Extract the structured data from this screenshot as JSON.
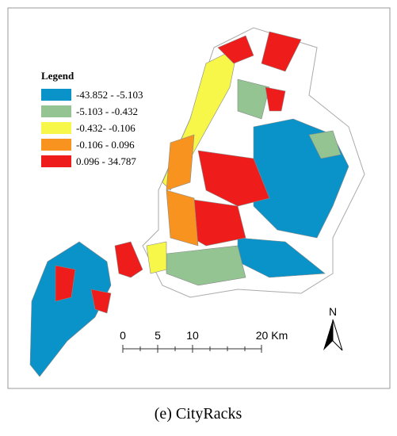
{
  "legend": {
    "title": "Legend",
    "items": [
      {
        "label": "-43.852 - -5.103",
        "color": "#0a93c8"
      },
      {
        "label": "-5.103 - -0.432",
        "color": "#93c492"
      },
      {
        "label": "-0.432- -0.106",
        "color": "#f7f74a"
      },
      {
        "label": "-0.106 - 0.096",
        "color": "#f7931e"
      },
      {
        "label": "0.096 - 34.787",
        "color": "#ef1c1c"
      }
    ]
  },
  "scale_bar": {
    "labels": [
      "0",
      "5",
      "10",
      "20 Km"
    ]
  },
  "north_arrow": "N",
  "caption": "(e) CityRacks"
}
